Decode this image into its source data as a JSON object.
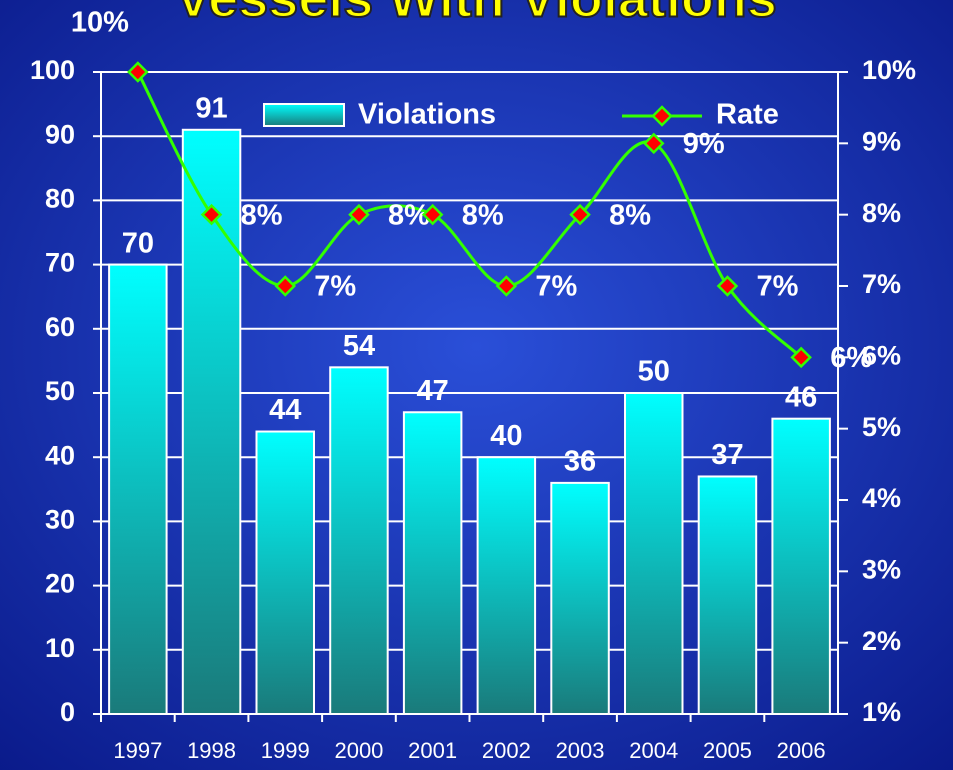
{
  "chart_data": {
    "type": "bar_line",
    "title": "Vessels With Violations",
    "categories": [
      "1997",
      "1998",
      "1999",
      "2000",
      "2001",
      "2002",
      "2003",
      "2004",
      "2005",
      "2006"
    ],
    "series": [
      {
        "name": "Violations",
        "color": "#00e5e5",
        "values": [
          70,
          91,
          44,
          54,
          47,
          40,
          36,
          50,
          37,
          46
        ]
      },
      {
        "name": "Rate",
        "color": "#33ff00",
        "axis": "y2",
        "values": [
          10,
          8,
          7,
          8,
          8,
          7,
          8,
          9,
          7,
          6
        ],
        "value_labels": [
          "10%",
          "8%",
          "7%",
          "8%",
          "8%",
          "7%",
          "8%",
          "9%",
          "7%",
          "6%"
        ]
      }
    ],
    "ylim": [
      0,
      100
    ],
    "yticks": [
      0,
      10,
      20,
      30,
      40,
      50,
      60,
      70,
      80,
      90,
      100
    ],
    "y2lim": [
      1,
      10
    ],
    "y2ticks": [
      {
        "value": 1,
        "label": "1%"
      },
      {
        "value": 2,
        "label": "2%"
      },
      {
        "value": 3,
        "label": "3%"
      },
      {
        "value": 4,
        "label": "4%"
      },
      {
        "value": 5,
        "label": "5%"
      },
      {
        "value": 6,
        "label": "6%"
      },
      {
        "value": 7,
        "label": "7%"
      },
      {
        "value": 8,
        "label": "8%"
      },
      {
        "value": 9,
        "label": "9%"
      },
      {
        "value": 10,
        "label": "10%"
      }
    ],
    "grid": true
  }
}
